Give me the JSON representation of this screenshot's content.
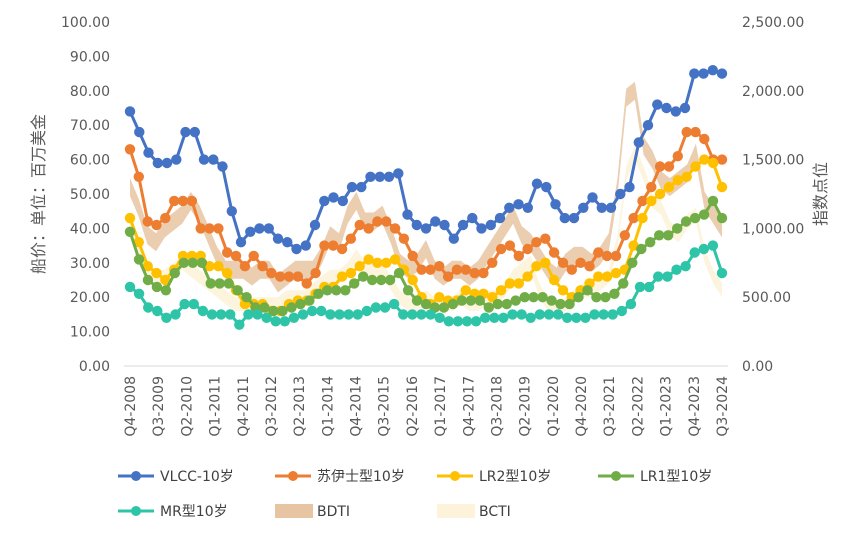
{
  "chart_data": {
    "type": "line",
    "y_left_label": "船价：单位：百万美金",
    "y_right_label": "指数点位",
    "y_left_ticks": [
      "0.00",
      "10.00",
      "20.00",
      "30.00",
      "40.00",
      "50.00",
      "60.00",
      "70.00",
      "80.00",
      "90.00",
      "100.00"
    ],
    "y_right_ticks": [
      "0.00",
      "500.00",
      "1,000.00",
      "1,500.00",
      "2,000.00",
      "2,500.00"
    ],
    "y_left_range": [
      0,
      100
    ],
    "y_right_range": [
      0,
      2500
    ],
    "x_tick_labels": [
      "Q4-2008",
      "Q3-2009",
      "Q2-2010",
      "Q1-2011",
      "Q4-2011",
      "Q3-2012",
      "Q2-2013",
      "Q1-2014",
      "Q4-2014",
      "Q3-2015",
      "Q2-2016",
      "Q1-2017",
      "Q4-2017",
      "Q3-2018",
      "Q2-2019",
      "Q1-2020",
      "Q4-2020",
      "Q3-2021",
      "Q2-2022",
      "Q1-2023",
      "Q4-2023",
      "Q3-2024"
    ],
    "x_tick_every": 3,
    "legend_position": "bottom",
    "series": [
      {
        "name": "VLCC-10岁",
        "color": "#4472C4",
        "axis": "left",
        "kind": "line",
        "values": [
          74,
          68,
          62,
          59,
          59,
          60,
          68,
          68,
          60,
          60,
          58,
          45,
          36,
          39,
          40,
          40,
          37,
          36,
          34,
          35,
          41,
          48,
          49,
          48,
          52,
          52,
          55,
          55,
          55,
          56,
          44,
          41,
          40,
          42,
          41,
          37,
          41,
          43,
          40,
          41,
          43,
          46,
          47,
          46,
          53,
          52,
          47,
          43,
          43,
          46,
          49,
          46,
          46,
          50,
          52,
          65,
          70,
          76,
          75,
          74,
          75,
          85,
          85,
          86,
          85
        ]
      },
      {
        "name": "苏伊士型10岁",
        "color": "#ED7D31",
        "axis": "left",
        "kind": "line",
        "values": [
          63,
          55,
          42,
          41,
          43,
          48,
          48,
          48,
          40,
          40,
          40,
          33,
          32,
          29,
          32,
          29,
          27,
          26,
          26,
          26,
          24,
          27,
          35,
          35,
          34,
          37,
          41,
          40,
          42,
          42,
          40,
          37,
          32,
          28,
          28,
          29,
          26,
          28,
          28,
          27,
          27,
          30,
          34,
          35,
          32,
          34,
          36,
          37,
          33,
          30,
          28,
          30,
          29,
          33,
          32,
          32,
          38,
          43,
          48,
          52,
          58,
          58,
          61,
          68,
          68,
          66,
          60,
          60
        ]
      },
      {
        "name": "LR2型10岁",
        "color": "#FFC000",
        "axis": "left",
        "kind": "line",
        "values": [
          43,
          36,
          29,
          27,
          25,
          28,
          32,
          32,
          32,
          29,
          29,
          27,
          22,
          18,
          18,
          18,
          16,
          16,
          18,
          19,
          19,
          21,
          23,
          23,
          26,
          27,
          29,
          31,
          30,
          30,
          31,
          28,
          25,
          20,
          18,
          20,
          19,
          19,
          22,
          21,
          21,
          20,
          22,
          24,
          24,
          26,
          29,
          30,
          25,
          22,
          20,
          22,
          24,
          26,
          26,
          27,
          28,
          35,
          43,
          48,
          50,
          52,
          54,
          55,
          58,
          60,
          59,
          52
        ]
      },
      {
        "name": "LR1型10岁",
        "color": "#70AD47",
        "axis": "left",
        "kind": "line",
        "values": [
          39,
          31,
          25,
          23,
          22,
          27,
          30,
          30,
          30,
          24,
          24,
          24,
          22,
          20,
          17,
          17,
          16,
          16,
          17,
          18,
          19,
          21,
          22,
          22,
          22,
          24,
          26,
          25,
          25,
          25,
          27,
          22,
          19,
          18,
          17,
          17,
          18,
          19,
          19,
          19,
          17,
          18,
          18,
          19,
          20,
          20,
          20,
          19,
          18,
          18,
          20,
          22,
          20,
          20,
          21,
          24,
          30,
          34,
          36,
          38,
          38,
          40,
          42,
          43,
          44,
          48,
          43
        ]
      },
      {
        "name": "MR型10岁",
        "color": "#2EC4A7",
        "axis": "left",
        "kind": "line",
        "values": [
          23,
          21,
          17,
          16,
          14,
          15,
          18,
          18,
          16,
          15,
          15,
          15,
          12,
          15,
          15,
          14,
          13,
          13,
          14,
          15,
          16,
          16,
          15,
          15,
          15,
          15,
          16,
          17,
          17,
          18,
          15,
          15,
          15,
          15,
          14,
          13,
          13,
          13,
          13,
          14,
          14,
          14,
          15,
          15,
          14,
          15,
          15,
          15,
          14,
          14,
          14,
          15,
          15,
          15,
          16,
          18,
          23,
          23,
          26,
          26,
          28,
          29,
          33,
          34,
          35,
          27
        ]
      },
      {
        "name": "BDTI",
        "color": "#E7C4A2",
        "axis": "right",
        "kind": "band",
        "values": [
          1300,
          1150,
          950,
          900,
          1000,
          1050,
          1100,
          1200,
          1100,
          950,
          800,
          700,
          700,
          700,
          650,
          700,
          700,
          600,
          650,
          700,
          700,
          700,
          800,
          950,
          900,
          1100,
          1200,
          1050,
          1050,
          1100,
          950,
          750,
          700,
          750,
          850,
          700,
          650,
          700,
          700,
          650,
          700,
          800,
          900,
          1000,
          1100,
          950,
          900,
          800,
          700,
          650,
          750,
          800,
          800,
          750,
          800,
          900,
          1300,
          1950,
          2000,
          1600,
          1500,
          1350,
          1300,
          1350,
          1400,
          1550,
          1200,
          1100,
          1000
        ]
      },
      {
        "name": "BCTI",
        "color": "#FDF3DA",
        "axis": "right",
        "kind": "band",
        "values": [
          1050,
          850,
          700,
          650,
          650,
          700,
          750,
          700,
          650,
          600,
          550,
          500,
          450,
          450,
          450,
          450,
          450,
          450,
          500,
          500,
          500,
          550,
          600,
          650,
          650,
          700,
          800,
          700,
          700,
          700,
          600,
          500,
          450,
          450,
          500,
          450,
          450,
          450,
          500,
          450,
          450,
          500,
          500,
          550,
          650,
          700,
          750,
          550,
          450,
          400,
          450,
          500,
          550,
          550,
          600,
          650,
          900,
          1400,
          1550,
          1400,
          1200,
          1150,
          1000,
          950,
          1050,
          1100,
          800,
          650,
          550
        ]
      }
    ]
  }
}
